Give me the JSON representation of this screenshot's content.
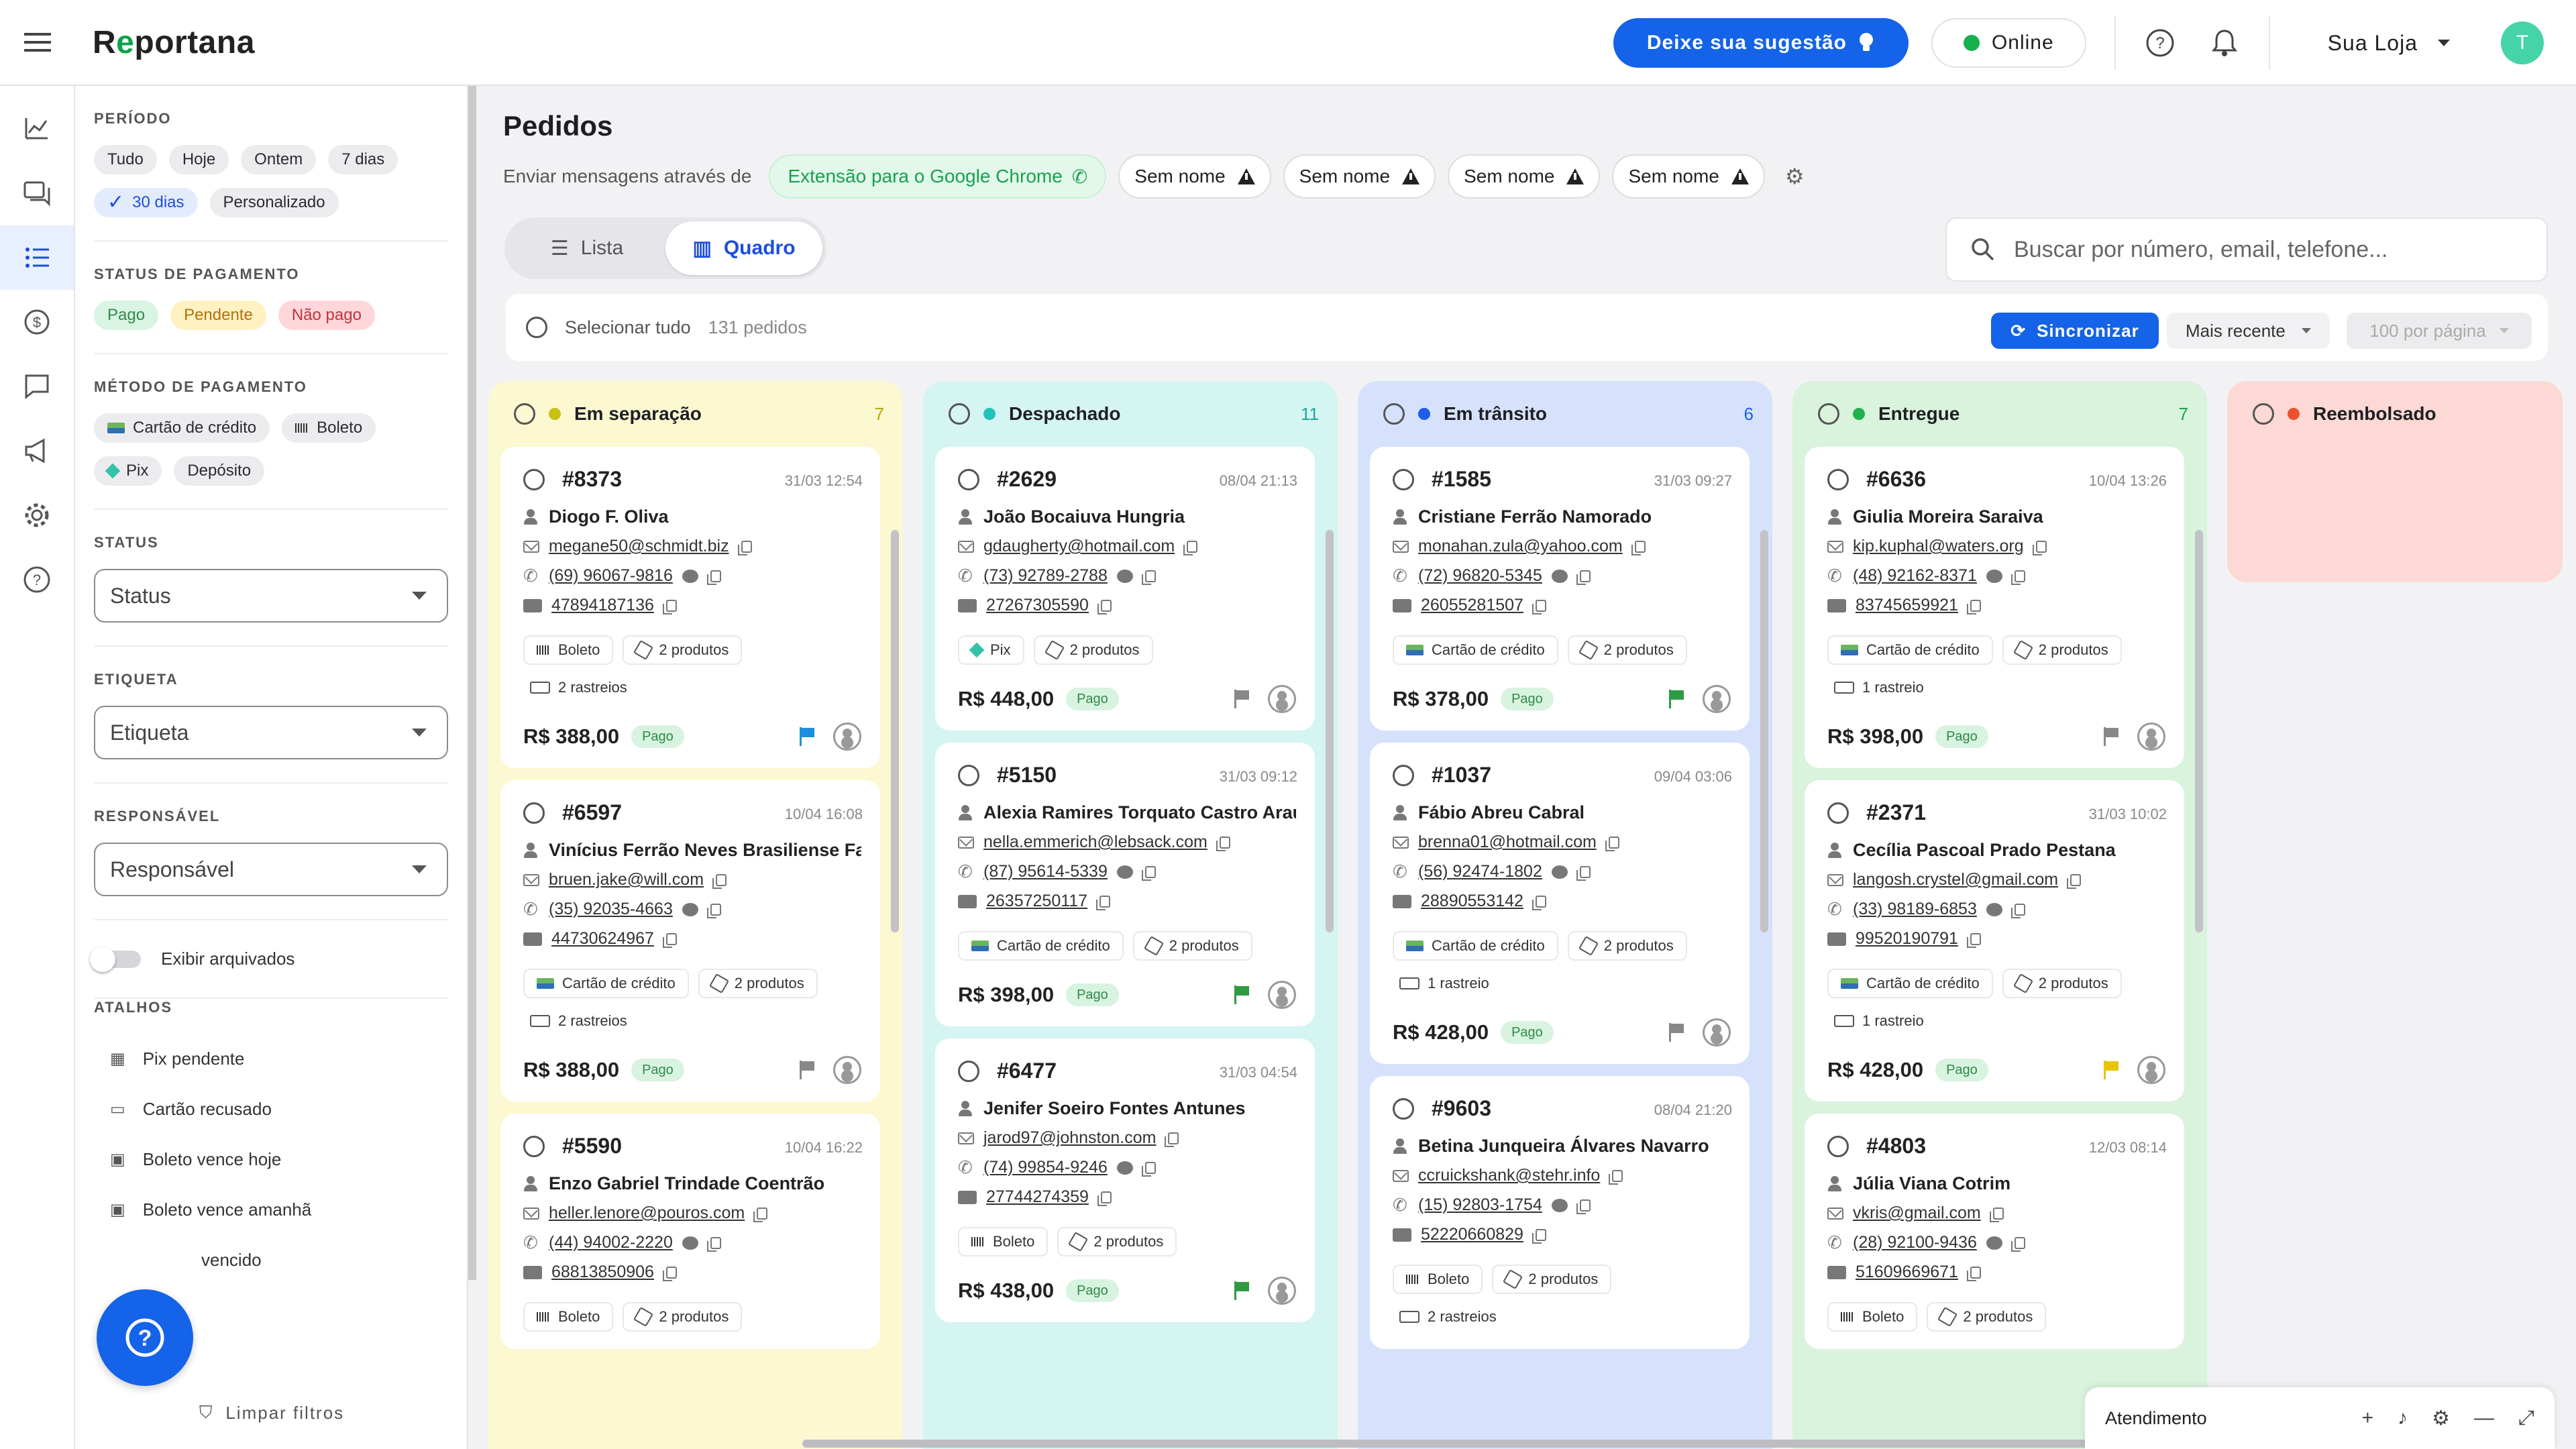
{
  "header": {
    "logo": "Reportana",
    "suggest_label": "Deixe sua sugestão",
    "online_label": "Online",
    "store_label": "Sua Loja",
    "avatar_initial": "T"
  },
  "rail": {
    "icons": [
      "chart-icon",
      "chat-icon",
      "list-icon",
      "money-icon",
      "message-icon",
      "megaphone-icon",
      "gear-icon",
      "help-icon"
    ],
    "active": "list-icon"
  },
  "filters": {
    "periodo": {
      "title": "PERÍODO",
      "options": [
        "Tudo",
        "Hoje",
        "Ontem",
        "7 dias",
        "30 dias",
        "Personalizado"
      ],
      "selected": "30 dias"
    },
    "status_pagamento": {
      "title": "STATUS DE PAGAMENTO",
      "options": [
        "Pago",
        "Pendente",
        "Não pago"
      ]
    },
    "metodo": {
      "title": "MÉTODO DE PAGAMENTO",
      "options": [
        "Cartão de crédito",
        "Boleto",
        "Pix",
        "Depósito"
      ]
    },
    "status": {
      "title": "STATUS",
      "placeholder": "Status"
    },
    "etiqueta": {
      "title": "ETIQUETA",
      "placeholder": "Etiqueta"
    },
    "responsavel": {
      "title": "RESPONSÁVEL",
      "placeholder": "Responsável"
    },
    "archived_label": "Exibir arquivados",
    "shortcuts": {
      "title": "ATALHOS",
      "items": [
        "Pix pendente",
        "Cartão recusado",
        "Boleto vence hoje",
        "Boleto vence amanhã",
        "vencido"
      ]
    },
    "clear_label": "Limpar filtros"
  },
  "main": {
    "title": "Pedidos",
    "send_via": "Enviar mensagens através de",
    "extension": "Extensão para o Google Chrome",
    "unnamed": [
      "Sem nome",
      "Sem nome",
      "Sem nome",
      "Sem nome"
    ],
    "view_list": "Lista",
    "view_board": "Quadro",
    "search_placeholder": "Buscar por número, email, telefone...",
    "select_all": "Selecionar tudo",
    "order_count": "131 pedidos",
    "sync": "Sincronizar",
    "sort": "Mais recente",
    "per_page": "100 por página"
  },
  "colors": {
    "accent": "#1463e8",
    "green": "#17b04e"
  },
  "columns": [
    {
      "title": "Em separação",
      "count": "7",
      "bg": "#fbf8d2",
      "dot": "#c9c016",
      "countColor": "#b7a800",
      "cards": [
        {
          "num": "#8373",
          "date": "31/03 12:54",
          "name": "Diogo F. Oliva",
          "email": "megane50@schmidt.biz",
          "phone": "(69) 96067-9816",
          "doc": "47894187136",
          "method": "Boleto",
          "products": "2 produtos",
          "tracking": "2 rastreios",
          "price": "R$ 388,00",
          "status": "Pago",
          "flag": "#1d8fe0"
        },
        {
          "num": "#6597",
          "date": "10/04 16:08",
          "name": "Vinícius Ferrão Neves Brasiliense Fal",
          "email": "bruen.jake@will.com",
          "phone": "(35) 92035-4663",
          "doc": "44730624967",
          "method": "Cartão de crédito",
          "products": "2 produtos",
          "tracking": "2 rastreios",
          "price": "R$ 388,00",
          "status": "Pago",
          "flag": "#888888"
        },
        {
          "num": "#5590",
          "date": "10/04 16:22",
          "name": "Enzo Gabriel Trindade Coentrão",
          "email": "heller.lenore@pouros.com",
          "phone": "(44) 94002-2220",
          "doc": "68813850906",
          "method": "Boleto",
          "products": "2 produtos",
          "tracking": "",
          "price": "",
          "status": "",
          "flag": ""
        }
      ]
    },
    {
      "title": "Despachado",
      "count": "11",
      "bg": "#d4f5f2",
      "dot": "#22c2b8",
      "countColor": "#18a99f",
      "cards": [
        {
          "num": "#2629",
          "date": "08/04 21:13",
          "name": "João Bocaiuva Hungria",
          "email": "gdaugherty@hotmail.com",
          "phone": "(73) 92789-2788",
          "doc": "27267305590",
          "method": "Pix",
          "products": "2 produtos",
          "tracking": "",
          "price": "R$ 448,00",
          "status": "Pago",
          "flag": "#888888"
        },
        {
          "num": "#5150",
          "date": "31/03 09:12",
          "name": "Alexia Ramires Torquato Castro Araú",
          "email": "nella.emmerich@lebsack.com",
          "phone": "(87) 95614-5339",
          "doc": "26357250117",
          "method": "Cartão de crédito",
          "products": "2 produtos",
          "tracking": "",
          "price": "R$ 398,00",
          "status": "Pago",
          "flag": "#2f9a44"
        },
        {
          "num": "#6477",
          "date": "31/03 04:54",
          "name": "Jenifer Soeiro Fontes Antunes",
          "email": "jarod97@johnston.com",
          "phone": "(74) 99854-9246",
          "doc": "27744274359",
          "method": "Boleto",
          "products": "2 produtos",
          "tracking": "",
          "price": "R$ 438,00",
          "status": "Pago",
          "flag": "#2f9a44"
        }
      ]
    },
    {
      "title": "Em trânsito",
      "count": "6",
      "bg": "#d6e2fc",
      "dot": "#1d5de8",
      "countColor": "#1d5de8",
      "cards": [
        {
          "num": "#1585",
          "date": "31/03 09:27",
          "name": "Cristiane Ferrão Namorado",
          "email": "monahan.zula@yahoo.com",
          "phone": "(72) 96820-5345",
          "doc": "26055281507",
          "method": "Cartão de crédito",
          "products": "2 produtos",
          "tracking": "",
          "price": "R$ 378,00",
          "status": "Pago",
          "flag": "#2f9a44"
        },
        {
          "num": "#1037",
          "date": "09/04 03:06",
          "name": "Fábio Abreu Cabral",
          "email": "brenna01@hotmail.com",
          "phone": "(56) 92474-1802",
          "doc": "28890553142",
          "method": "Cartão de crédito",
          "products": "2 produtos",
          "tracking": "1 rastreio",
          "price": "R$ 428,00",
          "status": "Pago",
          "flag": "#888888"
        },
        {
          "num": "#9603",
          "date": "08/04 21:20",
          "name": "Betina Junqueira Álvares Navarro",
          "email": "ccruickshank@stehr.info",
          "phone": "(15) 92803-1754",
          "doc": "52220660829",
          "method": "Boleto",
          "products": "2 produtos",
          "tracking": "2 rastreios",
          "price": "",
          "status": "",
          "flag": ""
        }
      ]
    },
    {
      "title": "Entregue",
      "count": "7",
      "bg": "#d9f3dc",
      "dot": "#22b14c",
      "countColor": "#22a04a",
      "cards": [
        {
          "num": "#6636",
          "date": "10/04 13:26",
          "name": "Giulia Moreira Saraiva",
          "email": "kip.kuphal@waters.org",
          "phone": "(48) 92162-8371",
          "doc": "83745659921",
          "method": "Cartão de crédito",
          "products": "2 produtos",
          "tracking": "1 rastreio",
          "price": "R$ 398,00",
          "status": "Pago",
          "flag": "#888888"
        },
        {
          "num": "#2371",
          "date": "31/03 10:02",
          "name": "Cecília Pascoal Prado Pestana",
          "email": "langosh.crystel@gmail.com",
          "phone": "(33) 98189-6853",
          "doc": "99520190791",
          "method": "Cartão de crédito",
          "products": "2 produtos",
          "tracking": "1 rastreio",
          "price": "R$ 428,00",
          "status": "Pago",
          "flag": "#e8c500"
        },
        {
          "num": "#4803",
          "date": "12/03 08:14",
          "name": "Júlia Viana Cotrim",
          "email": "vkris@gmail.com",
          "phone": "(28) 92100-9436",
          "doc": "51609669671",
          "method": "Boleto",
          "products": "2 produtos",
          "tracking": "",
          "price": "",
          "status": "",
          "flag": ""
        }
      ]
    },
    {
      "title": "Reembolsado",
      "count": "",
      "bg": "#fcd9d4",
      "dot": "#e8532e",
      "countColor": "#e8532e",
      "cards": []
    }
  ],
  "atendimento": {
    "title": "Atendimento"
  }
}
